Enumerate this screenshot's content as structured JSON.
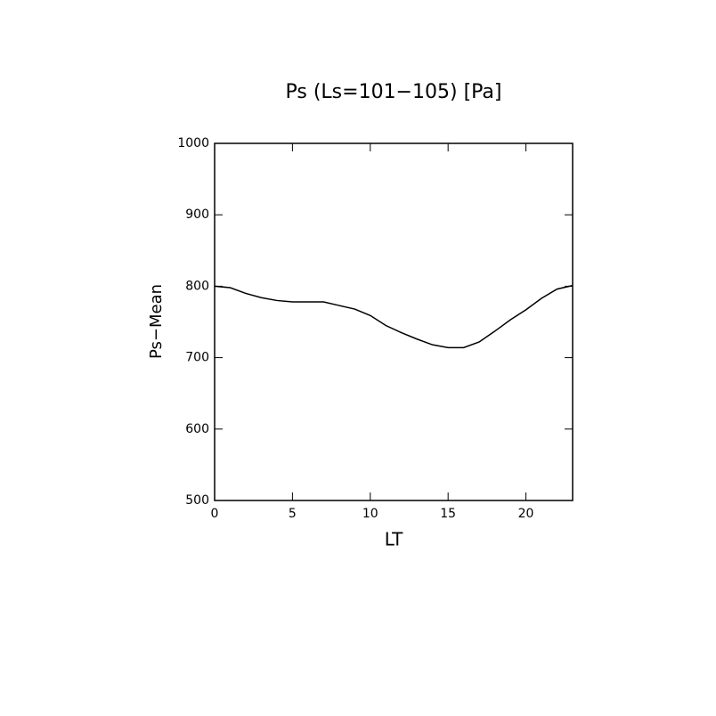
{
  "chart_data": {
    "type": "line",
    "title": "Ps (Ls=101−105) [Pa]",
    "x_label": "LT",
    "y_label": "Ps−Mean",
    "x": [
      0,
      1,
      2,
      3,
      4,
      5,
      6,
      7,
      8,
      9,
      10,
      11,
      12,
      13,
      14,
      15,
      16,
      17,
      18,
      19,
      20,
      21,
      22,
      23
    ],
    "series": [
      {
        "name": "Ps-Mean",
        "color": "#000000",
        "values": [
          800,
          798,
          790,
          784,
          780,
          778,
          778,
          778,
          773,
          768,
          759,
          745,
          735,
          726,
          718,
          714,
          714,
          722,
          737,
          753,
          767,
          783,
          796,
          801
        ]
      }
    ],
    "xlim": [
      0,
      23
    ],
    "xticks": [
      0,
      5,
      10,
      15,
      20
    ],
    "ylim": [
      500,
      1000
    ],
    "yticks": [
      500,
      600,
      700,
      800,
      900,
      1000
    ]
  }
}
